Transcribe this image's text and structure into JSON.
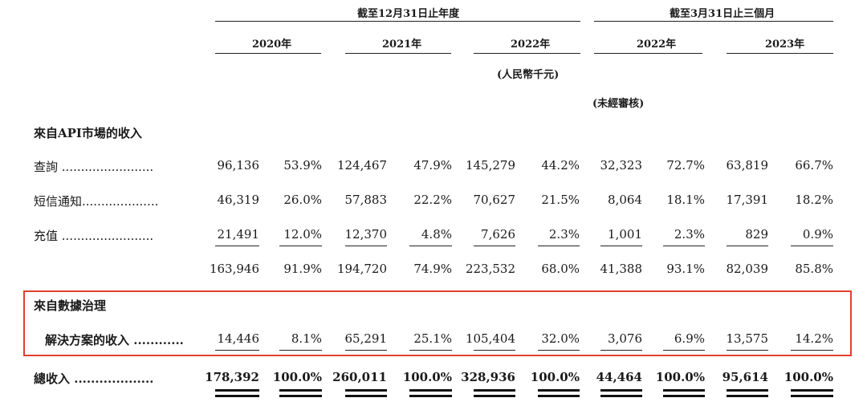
{
  "header": {
    "group_year": "截至12月31日止年度",
    "group_quarter": "截至3月31日止三個月",
    "years": [
      "2020年",
      "2021年",
      "2022年",
      "2022年",
      "2023年"
    ],
    "unit": "(人民幣千元)",
    "unaudited": "(未經審核)"
  },
  "section_api": {
    "title": "來自API市場的收入"
  },
  "rows": [
    {
      "label": "查詢 ........................",
      "values": [
        "96,136",
        "53.9%",
        "124,467",
        "47.9%",
        "145,279",
        "44.2%",
        "32,323",
        "72.7%",
        "63,819",
        "66.7%"
      ]
    },
    {
      "label": "短信通知....................",
      "values": [
        "46,319",
        "26.0%",
        "57,883",
        "22.2%",
        "70,627",
        "21.5%",
        "8,064",
        "18.1%",
        "17,391",
        "18.2%"
      ]
    },
    {
      "label": "充值 ........................",
      "values": [
        "21,491",
        "12.0%",
        "12,370",
        "4.8%",
        "7,626",
        "2.3%",
        "1,001",
        "2.3%",
        "829",
        "0.9%"
      ]
    },
    {
      "label": "",
      "values": [
        "163,946",
        "91.9%",
        "194,720",
        "74.9%",
        "223,532",
        "68.0%",
        "41,388",
        "93.1%",
        "82,039",
        "85.8%"
      ]
    }
  ],
  "section_data": {
    "title": "來自數據治理",
    "label": "解決方案的收入 ............",
    "values": [
      "14,446",
      "8.1%",
      "65,291",
      "25.1%",
      "105,404",
      "32.0%",
      "3,076",
      "6.9%",
      "13,575",
      "14.2%"
    ]
  },
  "total": {
    "label": "總收入 ...................",
    "values": [
      "178,392",
      "100.0%",
      "260,011",
      "100.0%",
      "328,936",
      "100.0%",
      "44,464",
      "100.0%",
      "95,614",
      "100.0%"
    ]
  },
  "colors": {
    "highlight_box": "#e0402e",
    "text": "#1a1a1a"
  }
}
